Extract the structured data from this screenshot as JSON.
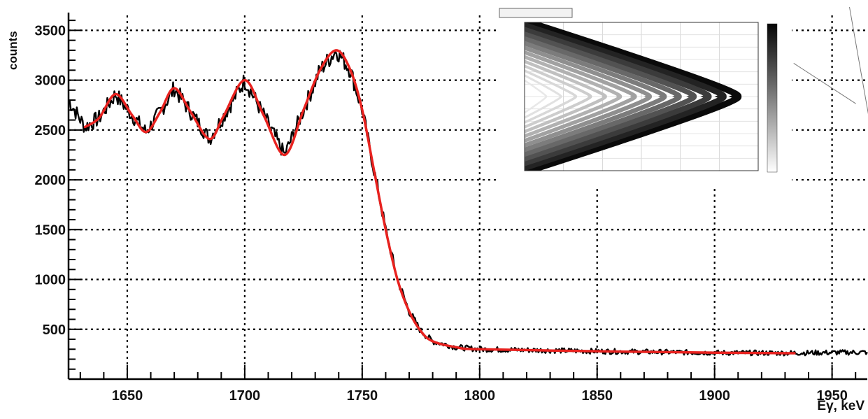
{
  "chart_data": [
    {
      "type": "line",
      "ylabel": "counts",
      "xlabel": "Eγ, keV",
      "xlim": [
        1625,
        1965
      ],
      "ylim": [
        0,
        3650
      ],
      "x_ticks": [
        1650,
        1700,
        1750,
        1800,
        1850,
        1900,
        1950
      ],
      "y_ticks": [
        500,
        1000,
        1500,
        2000,
        2500,
        3000,
        3500
      ],
      "grid": true,
      "series": [
        {
          "style": "noisy data histogram",
          "color": "#000000",
          "points": [
            [
              1625,
              2800
            ],
            [
              1632,
              2530
            ],
            [
              1638,
              2620
            ],
            [
              1645,
              2860
            ],
            [
              1652,
              2650
            ],
            [
              1658,
              2480
            ],
            [
              1664,
              2680
            ],
            [
              1670,
              2920
            ],
            [
              1677,
              2680
            ],
            [
              1685,
              2410
            ],
            [
              1691,
              2640
            ],
            [
              1700,
              3000
            ],
            [
              1708,
              2650
            ],
            [
              1717,
              2250
            ],
            [
              1725,
              2700
            ],
            [
              1732,
              3100
            ],
            [
              1739,
              3300
            ],
            [
              1745,
              3100
            ],
            [
              1750,
              2700
            ],
            [
              1755,
              2100
            ],
            [
              1760,
              1500
            ],
            [
              1765,
              1000
            ],
            [
              1770,
              680
            ],
            [
              1775,
              480
            ],
            [
              1780,
              380
            ],
            [
              1790,
              320
            ],
            [
              1800,
              300
            ],
            [
              1850,
              280
            ],
            [
              1900,
              265
            ],
            [
              1930,
              262
            ],
            [
              1965,
              270
            ]
          ]
        },
        {
          "style": "fit",
          "color": "#e8221f",
          "points": [
            [
              1632,
              2530
            ],
            [
              1638,
              2620
            ],
            [
              1645,
              2860
            ],
            [
              1652,
              2650
            ],
            [
              1658,
              2480
            ],
            [
              1664,
              2680
            ],
            [
              1670,
              2920
            ],
            [
              1677,
              2680
            ],
            [
              1685,
              2410
            ],
            [
              1691,
              2640
            ],
            [
              1700,
              3000
            ],
            [
              1708,
              2650
            ],
            [
              1717,
              2250
            ],
            [
              1725,
              2700
            ],
            [
              1732,
              3100
            ],
            [
              1739,
              3300
            ],
            [
              1745,
              3100
            ],
            [
              1750,
              2700
            ],
            [
              1755,
              2100
            ],
            [
              1760,
              1500
            ],
            [
              1765,
              1000
            ],
            [
              1770,
              680
            ],
            [
              1775,
              480
            ],
            [
              1780,
              380
            ],
            [
              1790,
              320
            ],
            [
              1800,
              300
            ],
            [
              1850,
              280
            ],
            [
              1900,
              265
            ],
            [
              1934,
              260
            ]
          ]
        }
      ]
    },
    {
      "type": "heatmap",
      "title": "",
      "colors": {
        "scale_low": "#ffffff",
        "scale_high": "#0a0a0a"
      }
    }
  ],
  "colors": {
    "data": "#000000",
    "fit": "#e8221f",
    "grid": "#000000"
  }
}
